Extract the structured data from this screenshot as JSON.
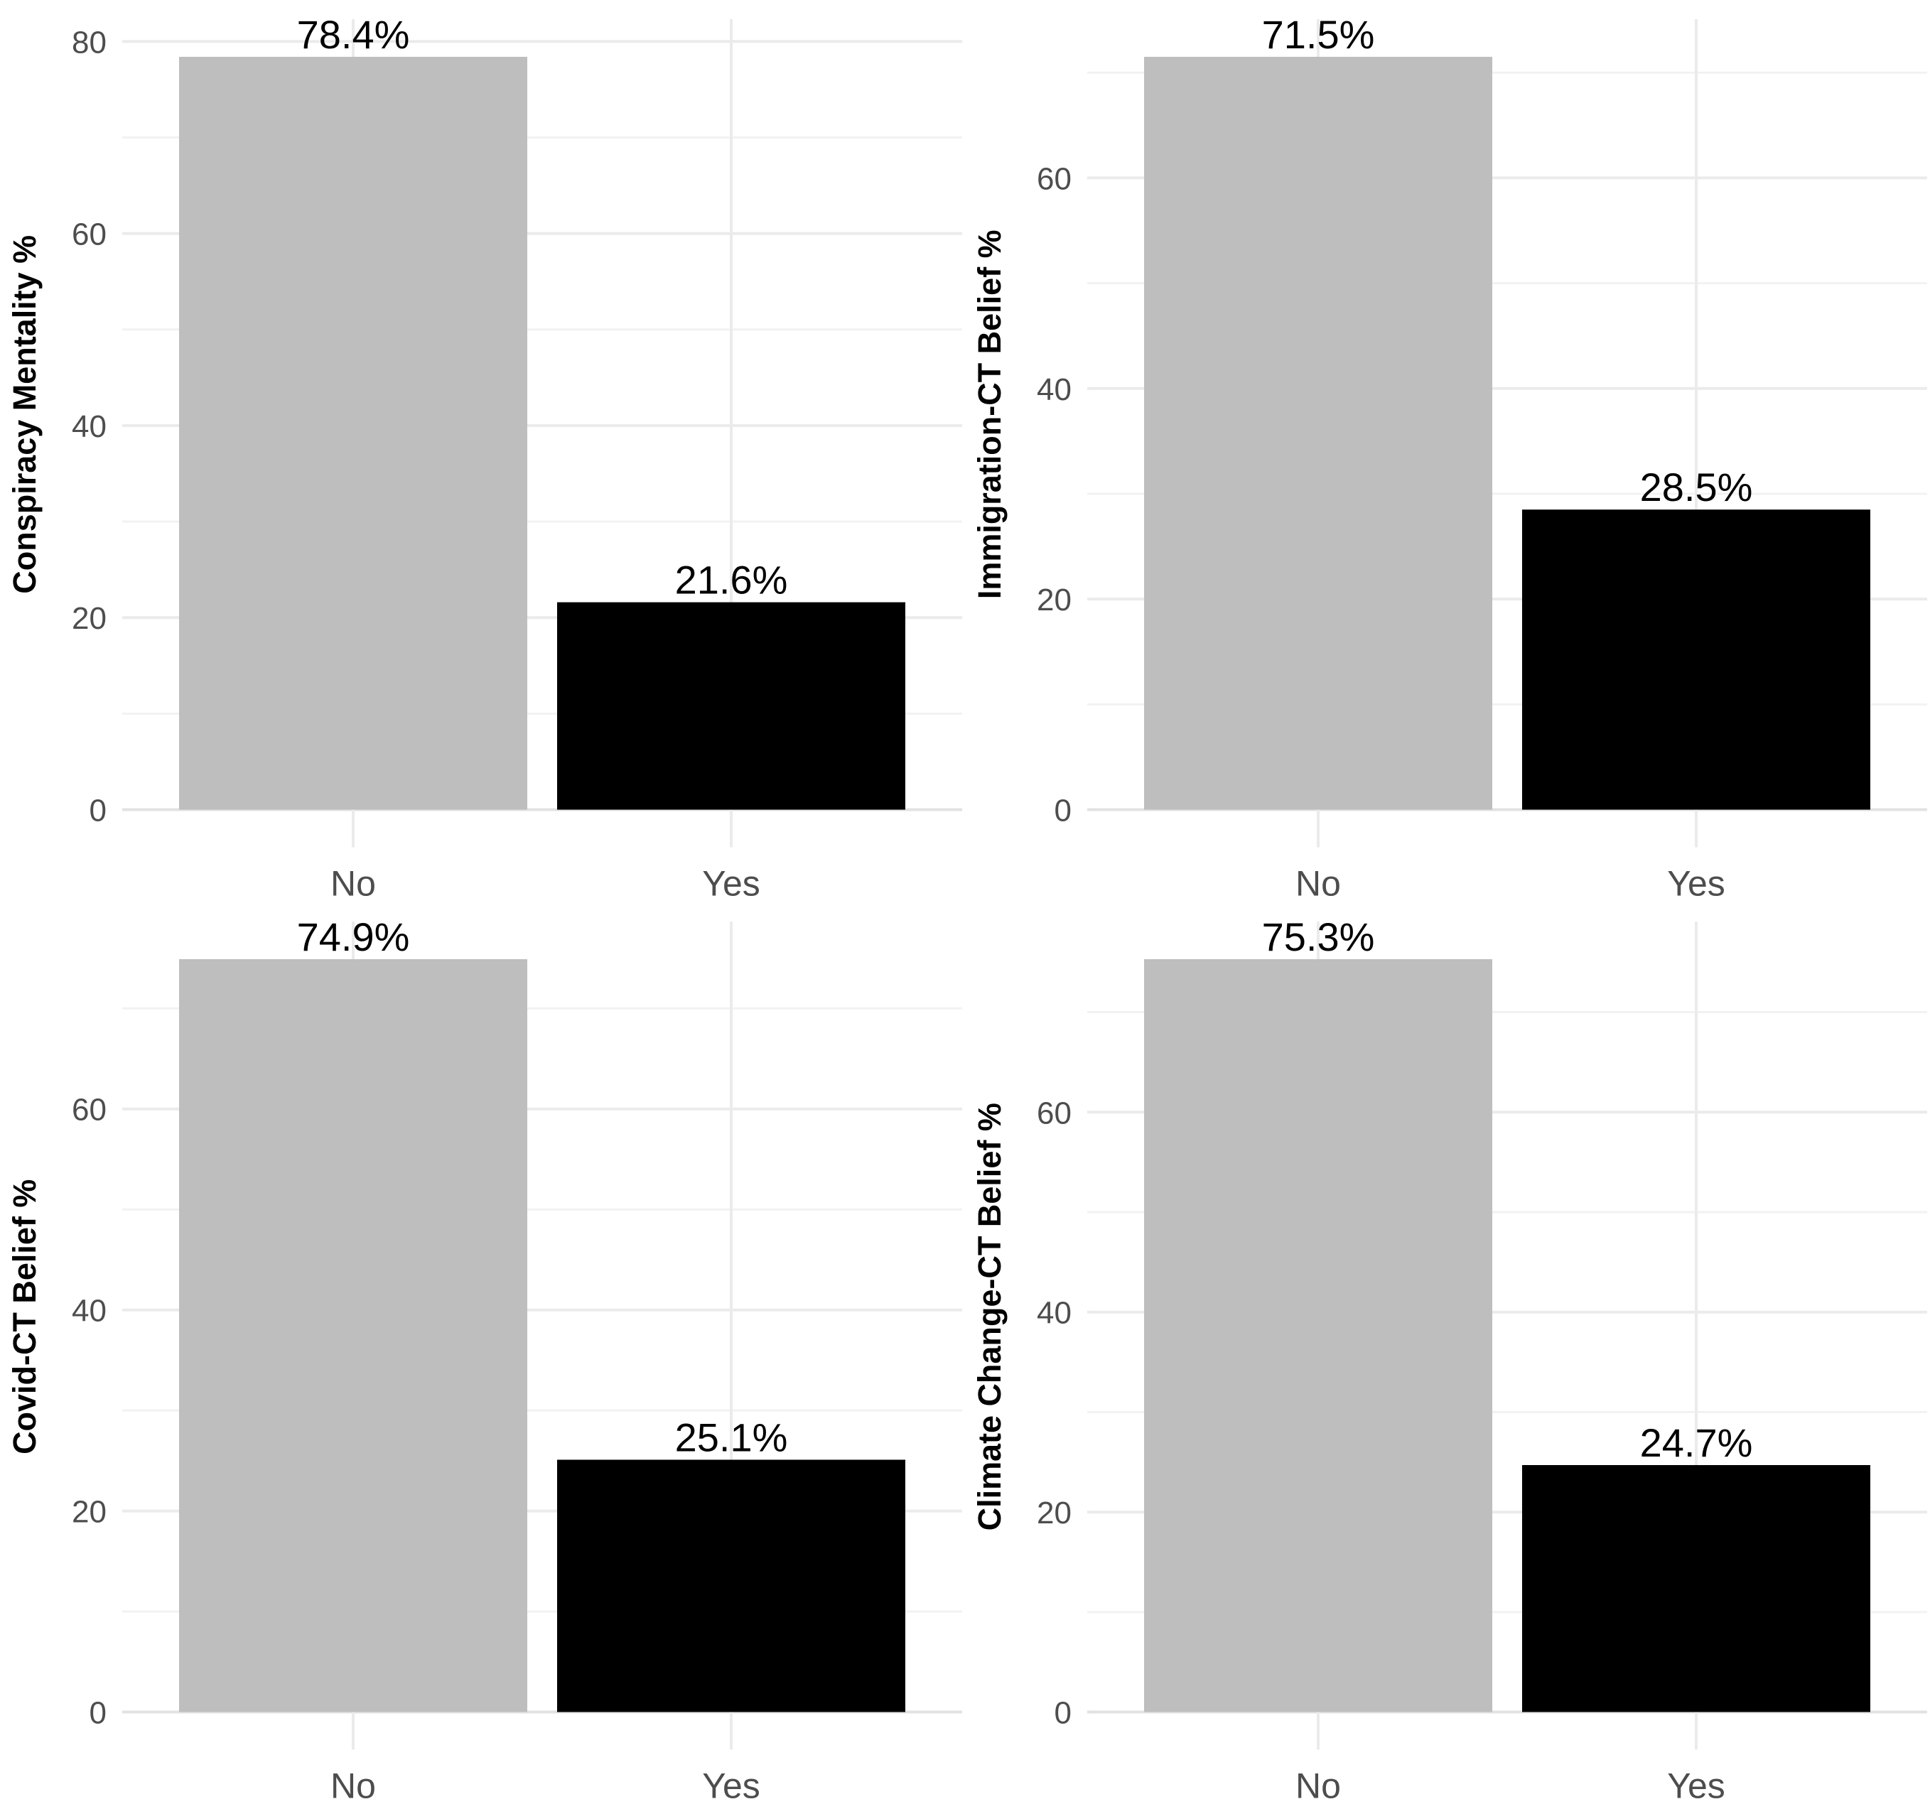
{
  "page": {
    "background": "#ffffff",
    "layout": "2x2-grid-of-bar-charts"
  },
  "style": {
    "bar_fill_no": "#bebebe",
    "bar_fill_yes": "#000000",
    "grid_major_color": "#ebebeb",
    "grid_minor_color": "#f2f2f2",
    "grid_zero_color": "#e2e2e2",
    "axis_tick_text_color": "#4d4d4d",
    "axis_title_color": "#000000",
    "value_label_color": "#000000"
  },
  "chart_data": [
    {
      "type": "bar",
      "panel": "top-left",
      "title": "",
      "xlabel": "",
      "ylabel": "Conspiracy Mentality %",
      "categories": [
        "No",
        "Yes"
      ],
      "values": [
        78.4,
        21.6
      ],
      "value_labels": [
        "78.4%",
        "21.6%"
      ],
      "bar_colors": [
        "#bebebe",
        "#000000"
      ],
      "yticks": [
        0,
        20,
        40,
        60,
        80
      ],
      "ytick_labels": [
        "0",
        "20",
        "40",
        "60",
        "80"
      ],
      "yticks_minor": [
        10,
        30,
        50,
        70
      ],
      "ylim": [
        0,
        82.3
      ],
      "grid": true,
      "legend": false
    },
    {
      "type": "bar",
      "panel": "top-right",
      "title": "",
      "xlabel": "",
      "ylabel": "Immigration-CT Belief %",
      "categories": [
        "No",
        "Yes"
      ],
      "values": [
        71.5,
        28.5
      ],
      "value_labels": [
        "71.5%",
        "28.5%"
      ],
      "bar_colors": [
        "#bebebe",
        "#000000"
      ],
      "yticks": [
        0,
        20,
        40,
        60
      ],
      "ytick_labels": [
        "0",
        "20",
        "40",
        "60"
      ],
      "yticks_minor": [
        10,
        30,
        50,
        70
      ],
      "ylim": [
        0,
        75.1
      ],
      "grid": true,
      "legend": false
    },
    {
      "type": "bar",
      "panel": "bottom-left",
      "title": "",
      "xlabel": "",
      "ylabel": "Covid-CT Belief %",
      "categories": [
        "No",
        "Yes"
      ],
      "values": [
        74.9,
        25.1
      ],
      "value_labels": [
        "74.9%",
        "25.1%"
      ],
      "bar_colors": [
        "#bebebe",
        "#000000"
      ],
      "yticks": [
        0,
        20,
        40,
        60
      ],
      "ytick_labels": [
        "0",
        "20",
        "40",
        "60"
      ],
      "yticks_minor": [
        10,
        30,
        50,
        70
      ],
      "ylim": [
        0,
        78.6
      ],
      "grid": true,
      "legend": false
    },
    {
      "type": "bar",
      "panel": "bottom-right",
      "title": "",
      "xlabel": "",
      "ylabel": "Climate Change-CT Belief %",
      "categories": [
        "No",
        "Yes"
      ],
      "values": [
        75.3,
        24.7
      ],
      "value_labels": [
        "75.3%",
        "24.7%"
      ],
      "bar_colors": [
        "#bebebe",
        "#000000"
      ],
      "yticks": [
        0,
        20,
        40,
        60
      ],
      "ytick_labels": [
        "0",
        "20",
        "40",
        "60"
      ],
      "yticks_minor": [
        10,
        30,
        50,
        70
      ],
      "ylim": [
        0,
        79.1
      ],
      "grid": true,
      "legend": false
    }
  ]
}
